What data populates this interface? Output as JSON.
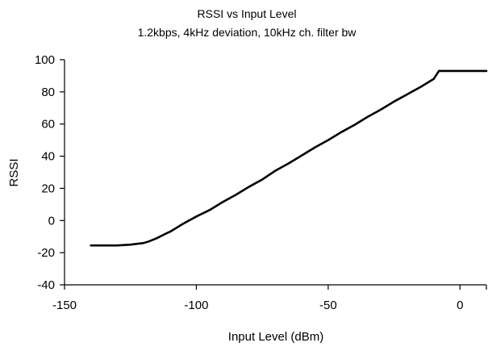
{
  "chart_data": {
    "type": "line",
    "title": "RSSI vs Input Level",
    "subtitle": "1.2kbps, 4kHz deviation, 10kHz ch. filter bw",
    "xlabel": "Input Level (dBm)",
    "ylabel": "RSSI",
    "xlim": [
      -150,
      10
    ],
    "ylim": [
      -40,
      100
    ],
    "xticks": [
      -150,
      -100,
      -50,
      0
    ],
    "xtick_labels": [
      "-150",
      "-100",
      "-50",
      "0"
    ],
    "yticks": [
      -40,
      -20,
      0,
      20,
      40,
      60,
      80,
      100
    ],
    "ytick_labels": [
      "-40",
      "-20",
      "0",
      "20",
      "40",
      "60",
      "80",
      "100"
    ],
    "grid": false,
    "legend": "none",
    "line_color": "#000000",
    "series": [
      {
        "x": [
          -140,
          -135,
          -130,
          -125,
          -120,
          -118,
          -115,
          -112,
          -110,
          -105,
          -100,
          -95,
          -90,
          -85,
          -80,
          -75,
          -70,
          -65,
          -60,
          -55,
          -50,
          -45,
          -40,
          -35,
          -30,
          -25,
          -20,
          -15,
          -10,
          -8,
          -5,
          0,
          5,
          10
        ],
        "y": [
          -15.5,
          -15.5,
          -15.5,
          -15,
          -14,
          -13,
          -11,
          -8.5,
          -7,
          -2,
          2.5,
          6.5,
          11.5,
          16,
          21,
          25.5,
          31,
          35.5,
          40.5,
          45.5,
          50,
          55,
          59.5,
          64.5,
          69,
          74,
          78.5,
          83,
          88,
          93,
          93,
          93,
          93,
          93
        ]
      }
    ]
  }
}
